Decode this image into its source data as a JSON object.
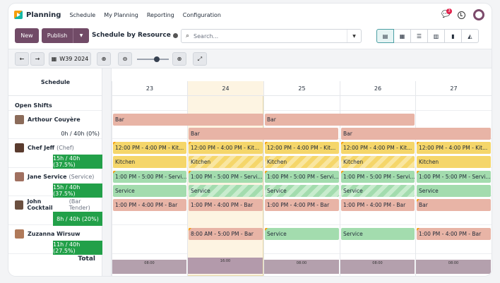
{
  "nav": {
    "app_name": "Planning",
    "menu": [
      "Schedule",
      "My Planning",
      "Reporting",
      "Configuration"
    ],
    "notification_count": "3",
    "icons": [
      "chat-icon",
      "clock-icon",
      "user-avatar"
    ]
  },
  "control": {
    "new_label": "New",
    "publish_label": "Publish",
    "view_title": "Schedule by Resource",
    "search_placeholder": "Search...",
    "views": [
      "gantt-icon",
      "calendar-icon",
      "list-icon",
      "kanban-icon",
      "bar-chart-icon",
      "area-chart-icon"
    ]
  },
  "gantt_toolbar": {
    "week_label": "W39 2024"
  },
  "schedule_header": "Schedule",
  "days": [
    "23",
    "24",
    "25",
    "26",
    "27"
  ],
  "open_shifts_label": "Open Shifts",
  "resources": [
    {
      "name": "Arthour Couyère",
      "role": "",
      "hours": "0h / 40h (0%)",
      "hours_style": "plain"
    },
    {
      "name": "Chef Jeff",
      "role": "(Chef)",
      "hours": "15h / 40h (37.5%)",
      "hours_style": "green"
    },
    {
      "name": "Jane Service",
      "role": "(Service)",
      "hours": "15h / 40h (37.5%)",
      "hours_style": "green"
    },
    {
      "name": "John Cocktail",
      "role": "(Bar Tender)",
      "hours": "8h / 40h (20%)",
      "hours_style": "green"
    },
    {
      "name": "Zuzanna Wirsuw",
      "role": "",
      "hours": "11h / 40h (27.5%)",
      "hours_style": "green"
    }
  ],
  "total_label": "Total",
  "shifts": {
    "arthour_bar_1": "Bar",
    "arthour_bar_2": "Bar",
    "arthour_bar_3": "Bar",
    "arthour_bar_4": "Bar",
    "jeff_kitchen_time": "12:00 PM - 4:00 PM - Kit...",
    "jeff_kitchen": "Kitchen",
    "jane_service_time": "1:00 PM - 5:00 PM - Servi...",
    "jane_service": "Service",
    "john_bar_time": "1:00 PM - 4:00 PM - Bar",
    "john_bar": "Bar",
    "zuz_bar_time": "8:00 AM - 5:00 PM - Bar",
    "zuz_bar_time_b": "1:00 PM - 4:00 PM - Bar",
    "zuz_service": "Service"
  },
  "totals": [
    "08:00",
    "16:00",
    "08:00",
    "08:00",
    "08:00"
  ]
}
